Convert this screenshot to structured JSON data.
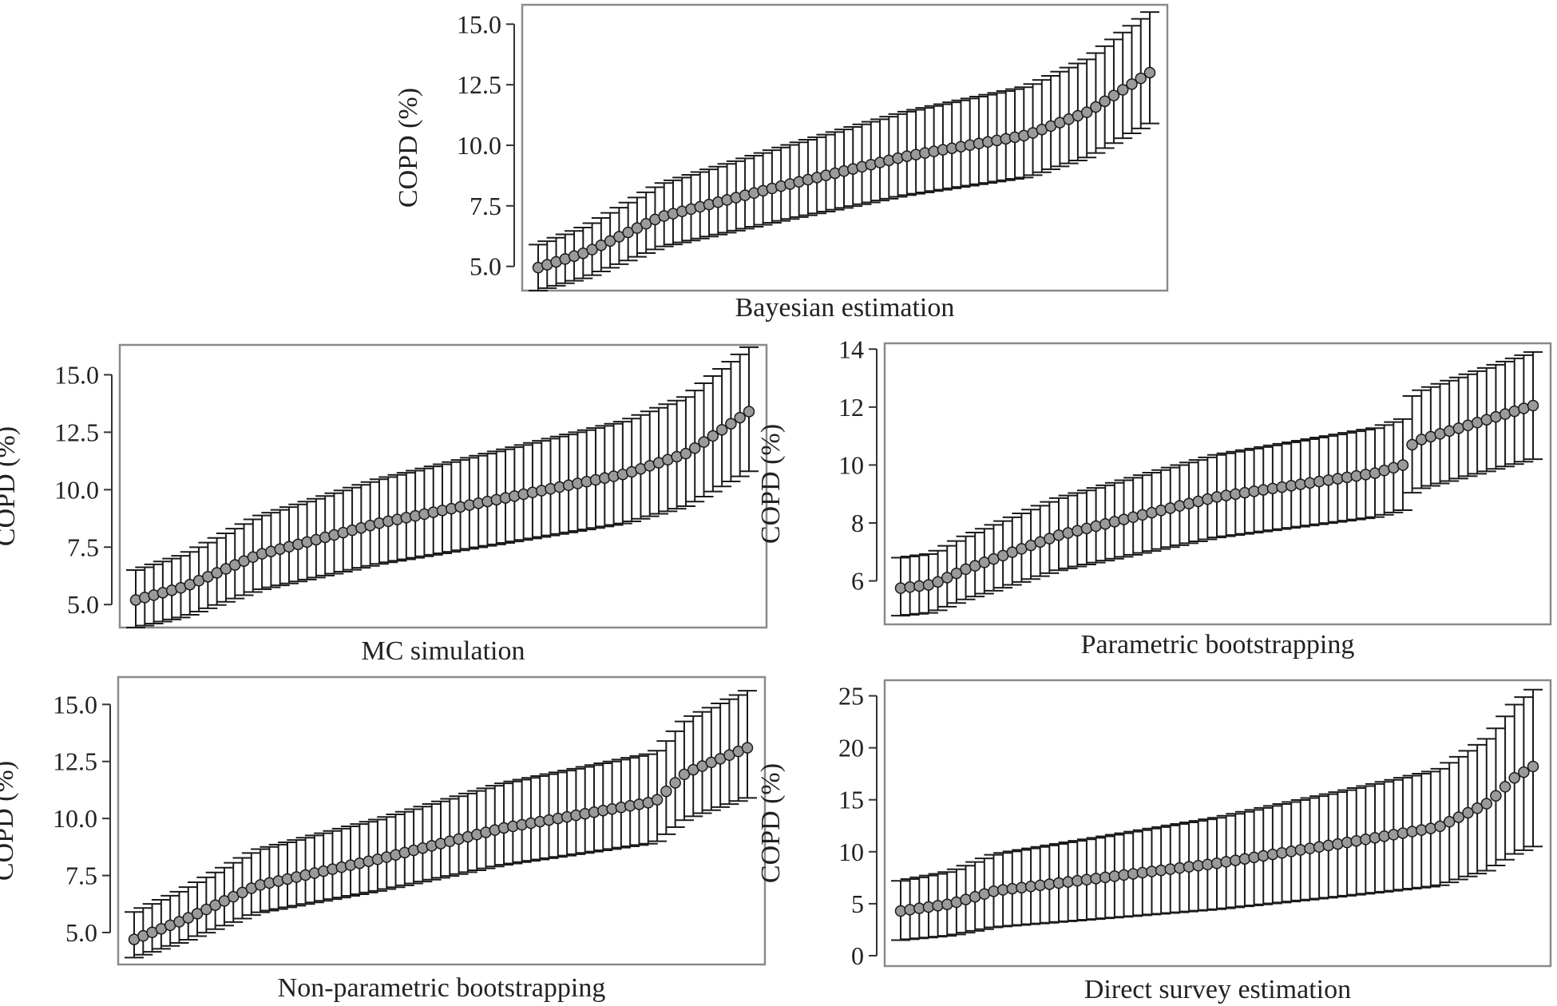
{
  "chart_data": [
    {
      "type": "errorbar",
      "title": "Bayesian estimation",
      "ylabel": "COPD (%)",
      "ylim": [
        4.0,
        15.8
      ],
      "yticks": [
        5.0,
        7.5,
        10.0,
        12.5,
        15.0
      ],
      "tick_decimals": 1,
      "series": [
        {
          "name": "estimate",
          "n": 69,
          "start": 4.95,
          "end": 13.0,
          "shape": [
            [
              0,
              0
            ],
            [
              0.08,
              0.08
            ],
            [
              0.2,
              0.26
            ],
            [
              0.4,
              0.42
            ],
            [
              0.6,
              0.57
            ],
            [
              0.8,
              0.68
            ],
            [
              0.9,
              0.8
            ],
            [
              1.0,
              1.0
            ]
          ]
        },
        {
          "name": "lower",
          "start": 4.0,
          "end": 10.9
        },
        {
          "name": "upper",
          "start": 5.9,
          "end": 15.5
        }
      ]
    },
    {
      "type": "errorbar",
      "title": "MC simulation",
      "ylabel": "COPD (%)",
      "ylim": [
        4.0,
        16.3
      ],
      "yticks": [
        5.0,
        7.5,
        10.0,
        12.5,
        15.0
      ],
      "tick_decimals": 1,
      "series": [
        {
          "name": "estimate",
          "n": 69,
          "start": 5.2,
          "end": 13.4,
          "shape": [
            [
              0,
              0
            ],
            [
              0.08,
              0.07
            ],
            [
              0.2,
              0.24
            ],
            [
              0.4,
              0.41
            ],
            [
              0.6,
              0.54
            ],
            [
              0.8,
              0.67
            ],
            [
              0.9,
              0.78
            ],
            [
              1.0,
              1.0
            ]
          ]
        },
        {
          "name": "lower",
          "start": 4.0,
          "end": 10.8
        },
        {
          "name": "upper",
          "start": 6.5,
          "end": 16.2
        }
      ]
    },
    {
      "type": "errorbar",
      "title": "Parametric bootstrapping",
      "ylabel": "COPD (%)",
      "ylim": [
        4.5,
        14.2
      ],
      "yticks": [
        6,
        8,
        10,
        12,
        14
      ],
      "tick_decimals": 0,
      "series": [
        {
          "name": "estimate",
          "n": 69,
          "start": 5.75,
          "end": 12.05,
          "shape": [
            [
              0,
              0
            ],
            [
              0.05,
              0.02
            ],
            [
              0.1,
              0.1
            ],
            [
              0.25,
              0.29
            ],
            [
              0.5,
              0.5
            ],
            [
              0.75,
              0.63
            ],
            [
              0.8,
              0.68
            ],
            [
              0.81,
              0.8
            ],
            [
              1.0,
              1.0
            ]
          ]
        },
        {
          "name": "lower",
          "start": 4.8,
          "end": 10.2
        },
        {
          "name": "upper",
          "start": 6.8,
          "end": 13.9
        }
      ]
    },
    {
      "type": "errorbar",
      "title": "Non-parametric bootstrapping",
      "ylabel": "COPD (%)",
      "ylim": [
        3.6,
        16.2
      ],
      "yticks": [
        5.0,
        7.5,
        10.0,
        12.5,
        15.0
      ],
      "tick_decimals": 1,
      "series": [
        {
          "name": "estimate",
          "n": 69,
          "start": 4.7,
          "end": 13.1,
          "shape": [
            [
              0,
              0
            ],
            [
              0.08,
              0.1
            ],
            [
              0.2,
              0.28
            ],
            [
              0.4,
              0.42
            ],
            [
              0.6,
              0.58
            ],
            [
              0.85,
              0.72
            ],
            [
              0.9,
              0.87
            ],
            [
              1.0,
              1.0
            ]
          ]
        },
        {
          "name": "lower",
          "start": 3.9,
          "end": 10.9
        },
        {
          "name": "upper",
          "start": 5.9,
          "end": 15.6
        }
      ]
    },
    {
      "type": "errorbar",
      "title": "Direct survey estimation",
      "ylabel": "COPD (%)",
      "ylim": [
        -1,
        26.5
      ],
      "yticks": [
        0,
        5,
        10,
        15,
        20,
        25
      ],
      "tick_decimals": 0,
      "series": [
        {
          "name": "estimate",
          "n": 69,
          "start": 4.3,
          "end": 18.2,
          "shape": [
            [
              0,
              0
            ],
            [
              0.08,
              0.05
            ],
            [
              0.15,
              0.14
            ],
            [
              0.3,
              0.22
            ],
            [
              0.5,
              0.33
            ],
            [
              0.7,
              0.47
            ],
            [
              0.85,
              0.58
            ],
            [
              0.93,
              0.75
            ],
            [
              0.97,
              0.92
            ],
            [
              1.0,
              1.0
            ]
          ]
        },
        {
          "name": "lower",
          "start": 1.5,
          "end": 10.5
        },
        {
          "name": "upper",
          "start": 7.2,
          "end": 25.6
        }
      ]
    }
  ]
}
